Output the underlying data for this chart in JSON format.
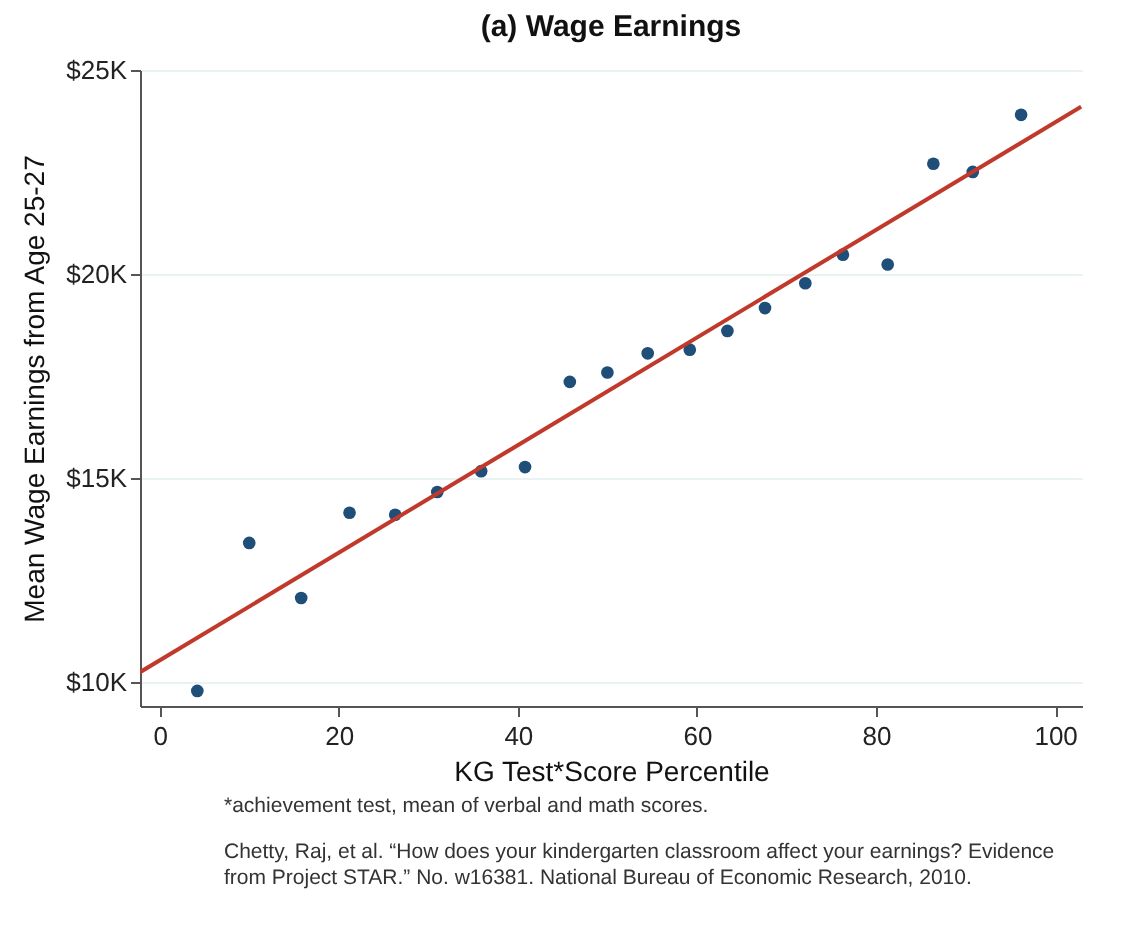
{
  "chart_data": {
    "type": "scatter",
    "title": "(a) Wage Earnings",
    "xlabel": "KG Test*Score Percentile",
    "ylabel": "Mean Wage Earnings from Age 25-27",
    "series": [
      {
        "color": "#1f4e79",
        "marker": "circle",
        "x": [
          4.2,
          10.0,
          15.8,
          21.2,
          26.3,
          31.0,
          35.9,
          40.8,
          45.8,
          50.0,
          54.5,
          59.2,
          63.4,
          67.6,
          72.1,
          76.3,
          81.3,
          86.4,
          90.8,
          96.2
        ],
        "values": [
          9770,
          13400,
          12050,
          14140,
          14090,
          14650,
          15160,
          15260,
          17350,
          17580,
          18050,
          18140,
          18600,
          19160,
          19770,
          20470,
          20230,
          22700,
          22500,
          23900
        ]
      },
      {
        "type": "line",
        "color": "#c0392b",
        "x": [
          -2.2,
          102.9
        ],
        "values": [
          10230,
          24100
        ]
      }
    ],
    "xlim": [
      -2.2,
      103
    ],
    "ylim": [
      9400,
      25000
    ],
    "xticks": [
      0,
      20,
      40,
      60,
      80,
      100
    ],
    "yticks": [
      {
        "value": 10000,
        "label": "$10K"
      },
      {
        "value": 15000,
        "label": "$15K"
      },
      {
        "value": 20000,
        "label": "$20K"
      },
      {
        "value": 25000,
        "label": "$25K"
      }
    ],
    "grid": "y",
    "annotations": [
      "*achievement test, mean of verbal and math scores.",
      "Chetty, Raj, et al. “How does your kindergarten classroom affect your earnings? Evidence",
      "from Project STAR.” No. w16381.  National Bureau of Economic Research, 2010."
    ]
  }
}
